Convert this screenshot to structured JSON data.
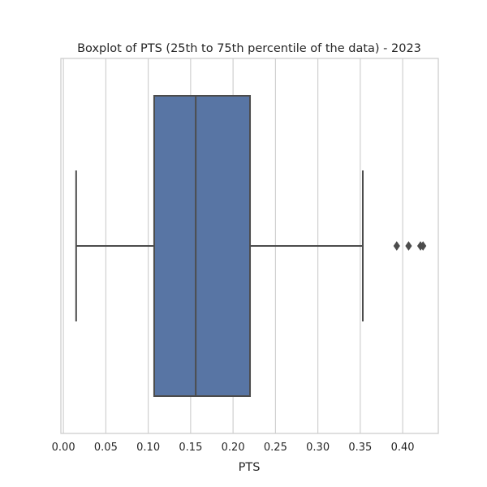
{
  "chart_data": {
    "type": "boxplot",
    "title": "Boxplot of PTS (25th to 75th percentile of the data) - 2023",
    "xlabel": "PTS",
    "ylabel": "",
    "xlim": [
      -0.003,
      0.442
    ],
    "xticks": [
      0.0,
      0.05,
      0.1,
      0.15,
      0.2,
      0.25,
      0.3,
      0.35,
      0.4
    ],
    "xtick_labels": [
      "0.00",
      "0.05",
      "0.10",
      "0.15",
      "0.20",
      "0.25",
      "0.30",
      "0.35",
      "0.40"
    ],
    "grid": true,
    "box": {
      "whisker_low": 0.015,
      "q1": 0.107,
      "median": 0.156,
      "q3": 0.22,
      "whisker_high": 0.353,
      "outliers": [
        0.393,
        0.407,
        0.421,
        0.424
      ]
    },
    "colors": {
      "box_fill": "#5875a4",
      "line": "#4c4c4c",
      "grid": "#cccccc",
      "spine": "#cccccc",
      "text": "#262626"
    }
  }
}
